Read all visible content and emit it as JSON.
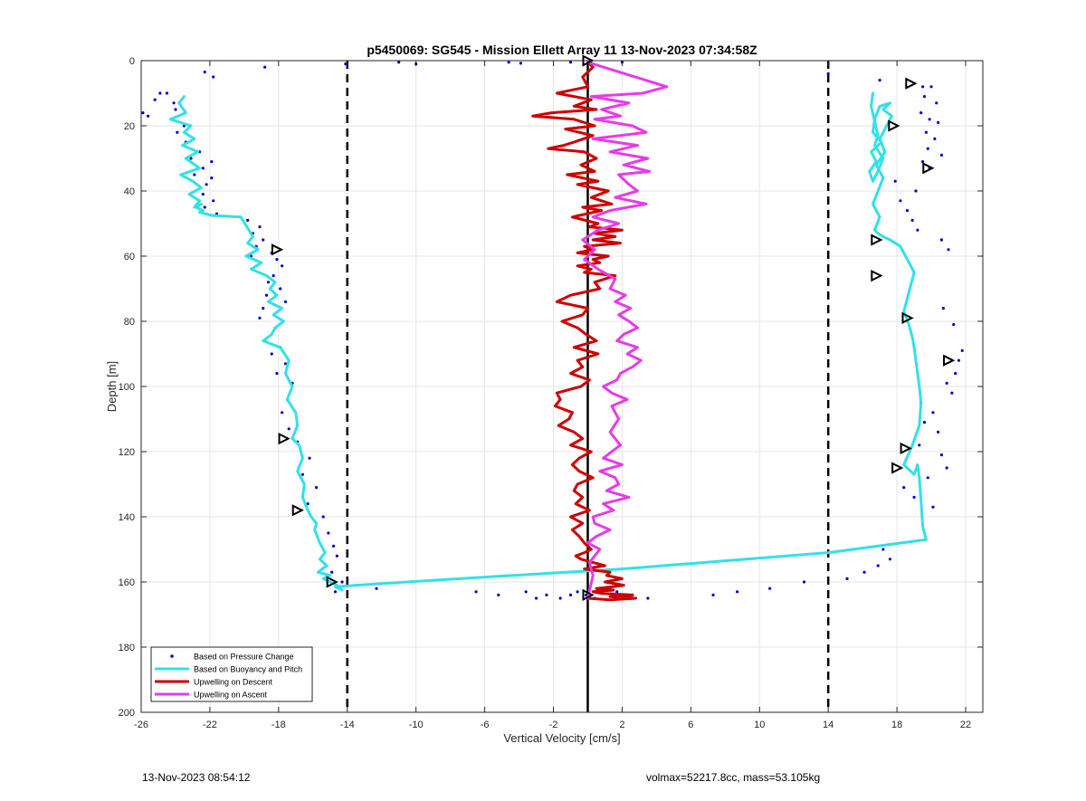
{
  "chart_data": {
    "type": "scatter",
    "title": "p5450069: SG545 - Mission Ellett Array 11 13-Nov-2023 07:34:58Z",
    "xlabel": "Vertical Velocity [cm/s]",
    "ylabel": "Depth [m]",
    "xlim": [
      -26,
      23
    ],
    "ylim": [
      0,
      200
    ],
    "y_reversed": true,
    "xticks": [
      -26,
      -22,
      -18,
      -14,
      -10,
      -6,
      -2,
      2,
      6,
      10,
      14,
      18,
      22
    ],
    "yticks": [
      0,
      20,
      40,
      60,
      80,
      100,
      120,
      140,
      160,
      180,
      200
    ],
    "grid": true,
    "legend_position": "bottom-left",
    "reference_lines": [
      {
        "x": -14,
        "style": "dashed",
        "color": "#000000"
      },
      {
        "x": 14,
        "style": "dashed",
        "color": "#000000"
      },
      {
        "x": 0,
        "style": "solid",
        "color": "#000000"
      }
    ],
    "series": [
      {
        "name": "Based on Pressure Change",
        "kind": "points",
        "color": "#0000cc",
        "x": [
          -22.3,
          -21.8,
          -24.5,
          -25.2,
          -25.9,
          -25.6,
          -24.9,
          -24.1,
          -24.0,
          -23.5,
          -23.9,
          -23.4,
          -22.6,
          -23.1,
          -22.4,
          -22.9,
          -22.2,
          -21.9,
          -22.4,
          -21.8,
          -22.3,
          -21.6,
          -21.9,
          -19.8,
          -19.1,
          -19.5,
          -18.9,
          -19.3,
          -18.4,
          -19.6,
          -18.1,
          -17.8,
          -18.3,
          -18.6,
          -17.9,
          -18.7,
          -17.6,
          -18.9,
          -19.1,
          -18.2,
          -18.8,
          -17.9,
          -18.4,
          -17.6,
          -18.1,
          -17.2,
          -17.8,
          -17.4,
          -16.9,
          -16.2,
          -16.6,
          -15.8,
          -16.3,
          -15.4,
          -15.1,
          -14.8,
          -14.6,
          -14.9,
          -14.3,
          -14.7,
          -12.3,
          -18.8,
          -14.1,
          -10.0,
          -6.5,
          -5.2,
          -3.6,
          -3.0,
          -2.4,
          -1.6,
          -1.0,
          -0.6,
          -0.1,
          0.4,
          1.7,
          2.6,
          3.5,
          7.3,
          8.7,
          10.6,
          12.6,
          15.1,
          16.1,
          16.9,
          17.6,
          17.2,
          19.5,
          20.0,
          19.6,
          20.3,
          19.4,
          19.9,
          20.4,
          19.7,
          20.2,
          19.8,
          20.6,
          19.5,
          19.9,
          17.9,
          19.1,
          18.2,
          18.6,
          18.9,
          19.2,
          20.6,
          21.0,
          20.7,
          21.3,
          21.8,
          21.6,
          21.4,
          20.9,
          21.2,
          19.4,
          20.1,
          19.6,
          20.4,
          19.3,
          20.6,
          20.9,
          19.8,
          18.4,
          19.0,
          20.1,
          -4.6,
          -3.9,
          -11.0,
          2.0,
          -1.0,
          14.0,
          17.0
        ],
        "y": [
          3.5,
          5.0,
          10.0,
          12.0,
          16.0,
          17.0,
          10.0,
          13.0,
          15.0,
          20.0,
          22.0,
          25.0,
          28.0,
          30.0,
          33.0,
          35.0,
          38.0,
          31.0,
          41.0,
          43.0,
          45.0,
          47.0,
          36.0,
          49.0,
          51.0,
          53.0,
          55.0,
          57.0,
          59.0,
          60.0,
          61.0,
          63.0,
          66.0,
          68.0,
          70.0,
          72.0,
          74.0,
          76.0,
          79.0,
          82.0,
          86.0,
          88.0,
          90.0,
          93.0,
          96.0,
          99.0,
          108.0,
          113.0,
          117.0,
          122.0,
          127.0,
          131.0,
          136.0,
          140.0,
          145.0,
          149.0,
          152.0,
          157.0,
          160.0,
          163.0,
          162.0,
          2.0,
          1.0,
          1.0,
          163.0,
          164.0,
          163.0,
          165.0,
          164.0,
          165.0,
          164.0,
          163.0,
          164.0,
          165.0,
          163.0,
          164.0,
          165.0,
          164.0,
          163.0,
          162.0,
          160.0,
          159.0,
          157.0,
          155.0,
          153.0,
          150.0,
          8.0,
          8.0,
          11.0,
          13.0,
          16.0,
          18.0,
          19.0,
          22.0,
          24.0,
          27.0,
          29.0,
          31.0,
          33.0,
          37.0,
          40.0,
          43.0,
          46.0,
          49.0,
          52.0,
          55.0,
          58.0,
          76.0,
          81.0,
          89.0,
          92.0,
          96.0,
          99.0,
          102.0,
          105.0,
          108.0,
          111.0,
          114.0,
          118.0,
          121.0,
          125.0,
          128.0,
          131.0,
          134.0,
          137.0,
          0.5,
          0.8,
          0.5,
          0.5,
          0.5,
          4.0,
          6.0
        ]
      },
      {
        "name": "Based on Buoyancy and Pitch",
        "kind": "line",
        "color": "#33e0e8",
        "x": [
          -23.5,
          -23.8,
          -23.4,
          -24.3,
          -23.1,
          -23.5,
          -22.9,
          -23.6,
          -22.7,
          -23.4,
          -22.6,
          -23.7,
          -23.0,
          -22.5,
          -23.2,
          -22.6,
          -22.9,
          -22.5,
          -22.8,
          -22.4,
          -22.6,
          -21.9,
          -20.2,
          -19.5,
          -19.8,
          -19.2,
          -19.9,
          -19.0,
          -19.6,
          -18.7,
          -18.2,
          -18.5,
          -18.1,
          -18.6,
          -17.8,
          -18.3,
          -17.7,
          -18.2,
          -18.4,
          -18.9,
          -17.9,
          -17.4,
          -17.6,
          -17.2,
          -17.5,
          -17.0,
          -16.9,
          -17.2,
          -16.8,
          -16.6,
          -16.9,
          -16.5,
          -16.6,
          -16.3,
          -16.1,
          -15.8,
          -15.9,
          -15.6,
          -15.3,
          -15.6,
          -15.2,
          -15.7,
          -15.0,
          -15.4,
          -14.6,
          -14.3,
          -14.7,
          -13.5,
          -6.0,
          2.0,
          8.0,
          14.0,
          19.7,
          19.5,
          19.4,
          19.3,
          19.2,
          19.0,
          18.8,
          18.4,
          18.9,
          19.3,
          19.4,
          19.3,
          19.2,
          19.1,
          19.0,
          18.9,
          18.7,
          18.4,
          18.6,
          18.8,
          19.0,
          18.6,
          18.2,
          17.6,
          17.2,
          16.9,
          16.7,
          17.0,
          16.6,
          16.9,
          17.2,
          16.8,
          17.3,
          17.0,
          17.4,
          17.7,
          17.2,
          17.6,
          17.0,
          16.7,
          16.6,
          17.1,
          16.5,
          16.8,
          16.4,
          16.6,
          16.8,
          17.2,
          16.7,
          16.9,
          16.5,
          16.6
        ],
        "y": [
          11.0,
          13.0,
          16.0,
          18.0,
          20.0,
          22.0,
          24.0,
          26.0,
          28.0,
          30.0,
          33.0,
          35.0,
          37.0,
          39.0,
          41.0,
          43.0,
          45.0,
          44.0,
          45.0,
          46.0,
          46.5,
          47.5,
          48.0,
          54.0,
          56.0,
          58.0,
          60.0,
          62.0,
          64.0,
          66.0,
          68.0,
          70.0,
          72.0,
          74.0,
          76.0,
          78.0,
          80.0,
          82.0,
          84.0,
          86.0,
          88.0,
          92.0,
          96.0,
          100.0,
          104.0,
          108.0,
          112.0,
          116.0,
          118.0,
          122.0,
          126.0,
          130.0,
          134.0,
          138.0,
          140.0,
          142.0,
          144.0,
          148.0,
          151.0,
          153.0,
          155.0,
          157.0,
          158.0,
          159.0,
          161.0,
          162.5,
          161.5,
          161.0,
          158.5,
          156.0,
          153.5,
          151.0,
          147.0,
          143.0,
          135.0,
          128.0,
          124.0,
          127.0,
          126.0,
          124.0,
          118.0,
          112.0,
          105.0,
          100.0,
          96.0,
          92.0,
          88.0,
          85.0,
          81.0,
          77.0,
          73.0,
          69.0,
          65.0,
          61.0,
          57.0,
          55.0,
          54.0,
          53.0,
          52.0,
          48.0,
          44.0,
          40.0,
          36.0,
          32.0,
          28.0,
          24.0,
          20.0,
          17.0,
          15.0,
          13.0,
          14.0,
          18.0,
          22.0,
          25.0,
          28.0,
          31.0,
          34.0,
          37.0,
          35.0,
          30.0,
          26.0,
          23.0,
          14.0,
          10.0
        ]
      },
      {
        "name": "Upwelling on Descent",
        "kind": "line",
        "color": "#cc0000",
        "x": [
          0.0,
          0.3,
          -0.3,
          0.0,
          -1.8,
          0.2,
          -0.8,
          0.5,
          -2.1,
          -3.2,
          -0.8,
          0.4,
          -1.3,
          0.3,
          -0.8,
          -1.4,
          -2.3,
          -0.2,
          0.5,
          -0.4,
          0.4,
          -1.2,
          0.6,
          -0.6,
          1.2,
          0.2,
          1.4,
          -0.3,
          0.8,
          -0.9,
          0.6,
          0.1,
          2.0,
          0.4,
          1.6,
          0.3,
          1.9,
          -0.2,
          0.3,
          -0.6,
          1.2,
          0.3,
          0.7,
          -0.6,
          0.2,
          -0.2,
          1.6,
          0.4,
          0.7,
          -1.0,
          -1.8,
          0.0,
          -0.3,
          -1.5,
          -0.6,
          -0.1,
          0.5,
          -0.8,
          0.6,
          -0.6,
          -0.3,
          -1.0,
          0.1,
          -0.4,
          -1.8,
          -1.6,
          -1.9,
          -0.9,
          -1.1,
          -1.7,
          -0.8,
          -0.3,
          -1.0,
          0.2,
          -0.5,
          -0.9,
          -0.5,
          0.3,
          -0.6,
          -0.8,
          -0.3,
          -0.7,
          0.1,
          -1.0,
          -0.3,
          -0.9,
          -0.5,
          -0.2,
          0.2,
          -0.2,
          -0.7,
          -0.4,
          0.3,
          1.0,
          -0.2,
          1.3,
          1.1,
          2.0,
          1.0,
          2.1,
          1.4,
          0.5,
          1.5,
          0.3,
          0.8,
          2.6,
          1.3,
          2.8,
          1.3,
          0.0
        ],
        "y": [
          0.5,
          2.0,
          5.0,
          8.0,
          10.0,
          12.0,
          14.0,
          15.0,
          16.0,
          17.0,
          18.0,
          20.0,
          21.0,
          23.0,
          25.0,
          26.0,
          27.0,
          28.0,
          30.0,
          32.0,
          34.0,
          35.0,
          37.0,
          38.0,
          40.0,
          42.0,
          44.0,
          45.0,
          46.0,
          48.0,
          50.0,
          51.0,
          52.0,
          53.0,
          54.0,
          55.0,
          56.0,
          57.0,
          58.0,
          59.0,
          60.0,
          61.0,
          62.0,
          63.0,
          64.0,
          65.0,
          66.0,
          68.0,
          70.0,
          72.0,
          74.0,
          76.0,
          78.0,
          80.0,
          82.0,
          84.0,
          86.0,
          88.0,
          90.0,
          92.0,
          94.0,
          96.0,
          98.0,
          100.0,
          102.0,
          104.0,
          106.0,
          108.0,
          110.0,
          112.0,
          114.0,
          116.0,
          118.0,
          120.0,
          122.0,
          124.0,
          126.0,
          128.0,
          130.0,
          132.0,
          134.0,
          136.0,
          138.0,
          140.0,
          142.0,
          144.0,
          146.0,
          148.0,
          150.0,
          151.0,
          152.0,
          153.0,
          154.0,
          155.0,
          156.0,
          157.0,
          158.0,
          159.0,
          160.0,
          161.0,
          161.5,
          162.0,
          162.5,
          163.0,
          163.5,
          164.0,
          164.5,
          165.0,
          165.5,
          165.0
        ]
      },
      {
        "name": "Upwelling on Ascent",
        "kind": "line",
        "color": "#e63ce6",
        "x": [
          0.0,
          4.6,
          3.2,
          0.2,
          2.4,
          0.8,
          1.9,
          0.4,
          2.6,
          3.4,
          0.3,
          2.9,
          1.3,
          3.5,
          2.1,
          3.6,
          1.8,
          2.4,
          2.9,
          1.6,
          3.4,
          1.3,
          0.3,
          1.8,
          0.6,
          -0.3,
          0.4,
          -0.2,
          0.6,
          1.6,
          1.3,
          2.2,
          1.6,
          2.5,
          1.8,
          2.4,
          2.9,
          2.1,
          1.7,
          2.9,
          2.3,
          3.1,
          2.6,
          1.9,
          1.7,
          0.9,
          1.4,
          2.3,
          1.4,
          1.8,
          1.3,
          1.9,
          0.9,
          2.0,
          0.7,
          1.6,
          1.8,
          1.1,
          2.4,
          0.9,
          1.5,
          0.3,
          0.4,
          1.3,
          0.5,
          0.0,
          0.7,
          0.1,
          0.3,
          0.0
        ],
        "y": [
          0.5,
          8.0,
          10.0,
          11.0,
          13.0,
          15.0,
          17.0,
          18.0,
          20.0,
          22.0,
          24.0,
          26.0,
          28.0,
          30.0,
          32.0,
          34.0,
          35.0,
          38.0,
          40.0,
          42.0,
          44.0,
          46.0,
          48.0,
          50.0,
          52.0,
          55.0,
          58.0,
          61.0,
          64.0,
          67.0,
          70.0,
          72.0,
          74.0,
          76.0,
          78.0,
          80.0,
          82.0,
          84.0,
          86.0,
          88.0,
          90.0,
          92.0,
          94.0,
          96.0,
          98.0,
          100.0,
          102.0,
          104.0,
          106.0,
          110.0,
          114.0,
          118.0,
          122.0,
          124.0,
          126.0,
          128.0,
          130.0,
          132.0,
          134.0,
          136.0,
          138.0,
          140.0,
          142.0,
          144.0,
          146.0,
          148.0,
          150.0,
          154.0,
          158.0,
          165.0
        ]
      }
    ],
    "markers": {
      "kind": "triangle",
      "color": "#000000",
      "points": [
        {
          "x": 0.0,
          "y": 0.0
        },
        {
          "x": 18.8,
          "y": 7.0
        },
        {
          "x": 17.8,
          "y": 20.0
        },
        {
          "x": 19.8,
          "y": 33.0
        },
        {
          "x": 16.8,
          "y": 55.0
        },
        {
          "x": 16.8,
          "y": 66.0
        },
        {
          "x": 18.6,
          "y": 79.0
        },
        {
          "x": 21.0,
          "y": 92.0
        },
        {
          "x": 18.5,
          "y": 119.0
        },
        {
          "x": 18.0,
          "y": 125.0
        },
        {
          "x": -18.1,
          "y": 58.0
        },
        {
          "x": -17.7,
          "y": 116.0
        },
        {
          "x": -16.9,
          "y": 138.0
        },
        {
          "x": -14.9,
          "y": 160.0
        },
        {
          "x": 0.0,
          "y": 164.0
        }
      ]
    }
  },
  "footer": {
    "timestamp": "13-Nov-2023 08:54:12",
    "vehicle_info": "volmax=52217.8cc, mass=53.105kg"
  }
}
